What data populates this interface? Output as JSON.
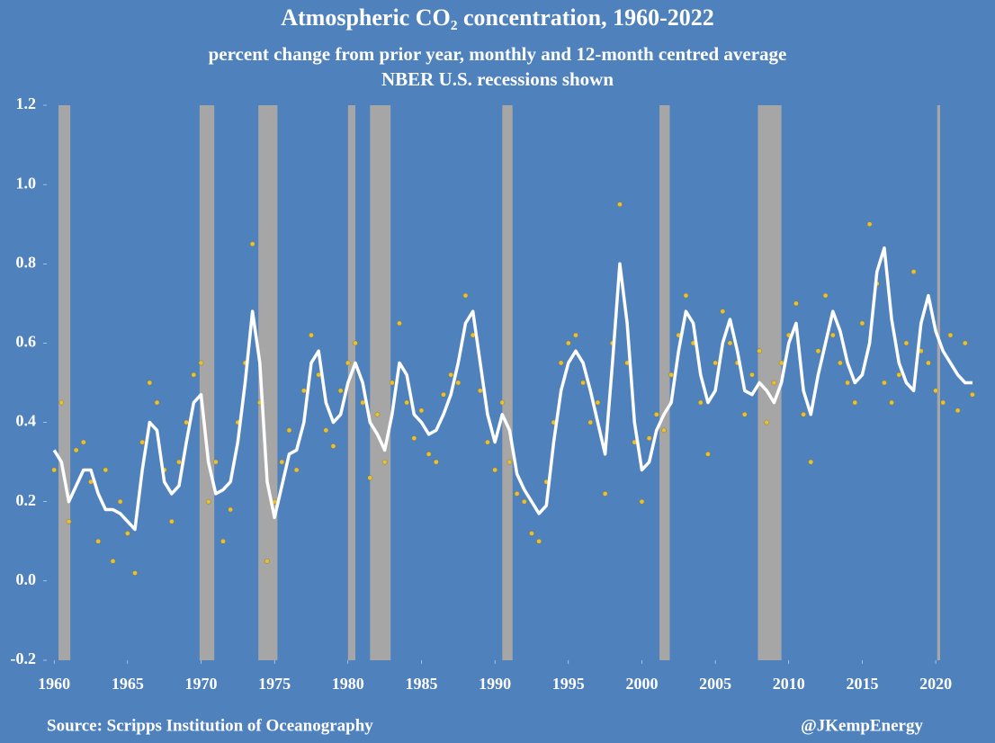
{
  "chart_data": {
    "type": "line",
    "title": "Atmospheric CO₂ concentration, 1960-2022",
    "subtitle": "percent change from prior year, monthly and 12-month centred average",
    "subtitle2": "NBER U.S. recessions shown",
    "source": "Source: Scripps Institution of Oceanography",
    "credit": "@JKempEnergy",
    "xlim": [
      1959.5,
      2023.3
    ],
    "xticks": [
      1960,
      1965,
      1970,
      1975,
      1980,
      1985,
      1990,
      1995,
      2000,
      2005,
      2010,
      2015,
      2020
    ],
    "ylim": [
      -0.2,
      1.2
    ],
    "yticks": [
      {
        "value": -0.2,
        "label": "-0.2"
      },
      {
        "value": 0,
        "label": "0.0"
      },
      0.2,
      0.4,
      0.6,
      0.8,
      {
        "value": 1,
        "label": "1.0"
      },
      1.2
    ],
    "recession_color": "#a6a6a6",
    "recessions": [
      [
        1960.3,
        1961.1
      ],
      [
        1969.9,
        1970.9
      ],
      [
        1973.9,
        1975.2
      ],
      [
        1980.0,
        1980.5
      ],
      [
        1981.5,
        1982.9
      ],
      [
        1990.5,
        1991.2
      ],
      [
        2001.2,
        2001.9
      ],
      [
        2007.9,
        2009.5
      ],
      [
        2020.1,
        2020.3
      ]
    ],
    "x": [
      1960,
      1960.5,
      1961,
      1961.5,
      1962,
      1962.5,
      1963,
      1963.5,
      1964,
      1964.5,
      1965,
      1965.5,
      1966,
      1966.5,
      1967,
      1967.5,
      1968,
      1968.5,
      1969,
      1969.5,
      1970,
      1970.5,
      1971,
      1971.5,
      1972,
      1972.5,
      1973,
      1973.5,
      1974,
      1974.5,
      1975,
      1975.5,
      1976,
      1976.5,
      1977,
      1977.5,
      1978,
      1978.5,
      1979,
      1979.5,
      1980,
      1980.5,
      1981,
      1981.5,
      1982,
      1982.5,
      1983,
      1983.5,
      1984,
      1984.5,
      1985,
      1985.5,
      1986,
      1986.5,
      1987,
      1987.5,
      1988,
      1988.5,
      1989,
      1989.5,
      1990,
      1990.5,
      1991,
      1991.5,
      1992,
      1992.5,
      1993,
      1993.5,
      1994,
      1994.5,
      1995,
      1995.5,
      1996,
      1996.5,
      1997,
      1997.5,
      1998,
      1998.5,
      1999,
      1999.5,
      2000,
      2000.5,
      2001,
      2001.5,
      2002,
      2002.5,
      2003,
      2003.5,
      2004,
      2004.5,
      2005,
      2005.5,
      2006,
      2006.5,
      2007,
      2007.5,
      2008,
      2008.5,
      2009,
      2009.5,
      2010,
      2010.5,
      2011,
      2011.5,
      2012,
      2012.5,
      2013,
      2013.5,
      2014,
      2014.5,
      2015,
      2015.5,
      2016,
      2016.5,
      2017,
      2017.5,
      2018,
      2018.5,
      2019,
      2019.5,
      2020,
      2020.5,
      2021,
      2021.5,
      2022,
      2022.5
    ],
    "series": [
      {
        "type": "scatter",
        "color": "#e6c036",
        "values": [
          0.28,
          0.45,
          0.15,
          0.33,
          0.35,
          0.25,
          0.1,
          0.28,
          0.05,
          0.2,
          0.12,
          0.02,
          0.35,
          0.5,
          0.45,
          0.28,
          0.15,
          0.3,
          0.4,
          0.52,
          0.55,
          0.2,
          0.3,
          0.1,
          0.18,
          0.4,
          0.55,
          0.85,
          0.45,
          0.05,
          0.2,
          0.3,
          0.38,
          0.28,
          0.48,
          0.62,
          0.52,
          0.38,
          0.34,
          0.48,
          0.55,
          0.6,
          0.45,
          0.26,
          0.42,
          0.3,
          0.5,
          0.65,
          0.45,
          0.36,
          0.43,
          0.32,
          0.3,
          0.47,
          0.52,
          0.5,
          0.72,
          0.62,
          0.48,
          0.35,
          0.28,
          0.45,
          0.3,
          0.22,
          0.2,
          0.12,
          0.1,
          0.25,
          0.4,
          0.55,
          0.6,
          0.62,
          0.5,
          0.4,
          0.45,
          0.22,
          0.6,
          0.95,
          0.55,
          0.35,
          0.2,
          0.36,
          0.42,
          0.38,
          0.52,
          0.62,
          0.72,
          0.6,
          0.45,
          0.32,
          0.55,
          0.68,
          0.6,
          0.55,
          0.42,
          0.52,
          0.58,
          0.4,
          0.5,
          0.55,
          0.62,
          0.7,
          0.42,
          0.3,
          0.58,
          0.72,
          0.62,
          0.55,
          0.5,
          0.45,
          0.65,
          0.9,
          0.75,
          0.5,
          0.45,
          0.52,
          0.6,
          0.78,
          0.58,
          0.55,
          0.48,
          0.45,
          0.62,
          0.43,
          0.6,
          0.47
        ]
      },
      {
        "type": "line",
        "color": "#ffffff",
        "values": [
          0.33,
          0.3,
          0.2,
          0.24,
          0.28,
          0.28,
          0.22,
          0.18,
          0.18,
          0.17,
          0.15,
          0.13,
          0.28,
          0.4,
          0.38,
          0.25,
          0.22,
          0.24,
          0.35,
          0.45,
          0.47,
          0.3,
          0.22,
          0.23,
          0.25,
          0.35,
          0.5,
          0.68,
          0.55,
          0.25,
          0.16,
          0.24,
          0.32,
          0.33,
          0.4,
          0.55,
          0.58,
          0.45,
          0.4,
          0.42,
          0.5,
          0.55,
          0.5,
          0.4,
          0.37,
          0.33,
          0.42,
          0.55,
          0.52,
          0.42,
          0.4,
          0.37,
          0.38,
          0.42,
          0.47,
          0.55,
          0.65,
          0.68,
          0.55,
          0.42,
          0.35,
          0.42,
          0.38,
          0.27,
          0.23,
          0.2,
          0.17,
          0.19,
          0.35,
          0.48,
          0.55,
          0.58,
          0.55,
          0.48,
          0.4,
          0.32,
          0.55,
          0.8,
          0.65,
          0.4,
          0.28,
          0.3,
          0.38,
          0.42,
          0.45,
          0.58,
          0.68,
          0.65,
          0.52,
          0.45,
          0.48,
          0.6,
          0.66,
          0.58,
          0.48,
          0.47,
          0.5,
          0.48,
          0.45,
          0.5,
          0.6,
          0.65,
          0.48,
          0.42,
          0.52,
          0.6,
          0.68,
          0.63,
          0.55,
          0.5,
          0.52,
          0.6,
          0.78,
          0.84,
          0.66,
          0.55,
          0.5,
          0.48,
          0.65,
          0.72,
          0.63,
          0.58,
          0.55,
          0.52,
          0.5,
          0.5
        ]
      }
    ]
  }
}
